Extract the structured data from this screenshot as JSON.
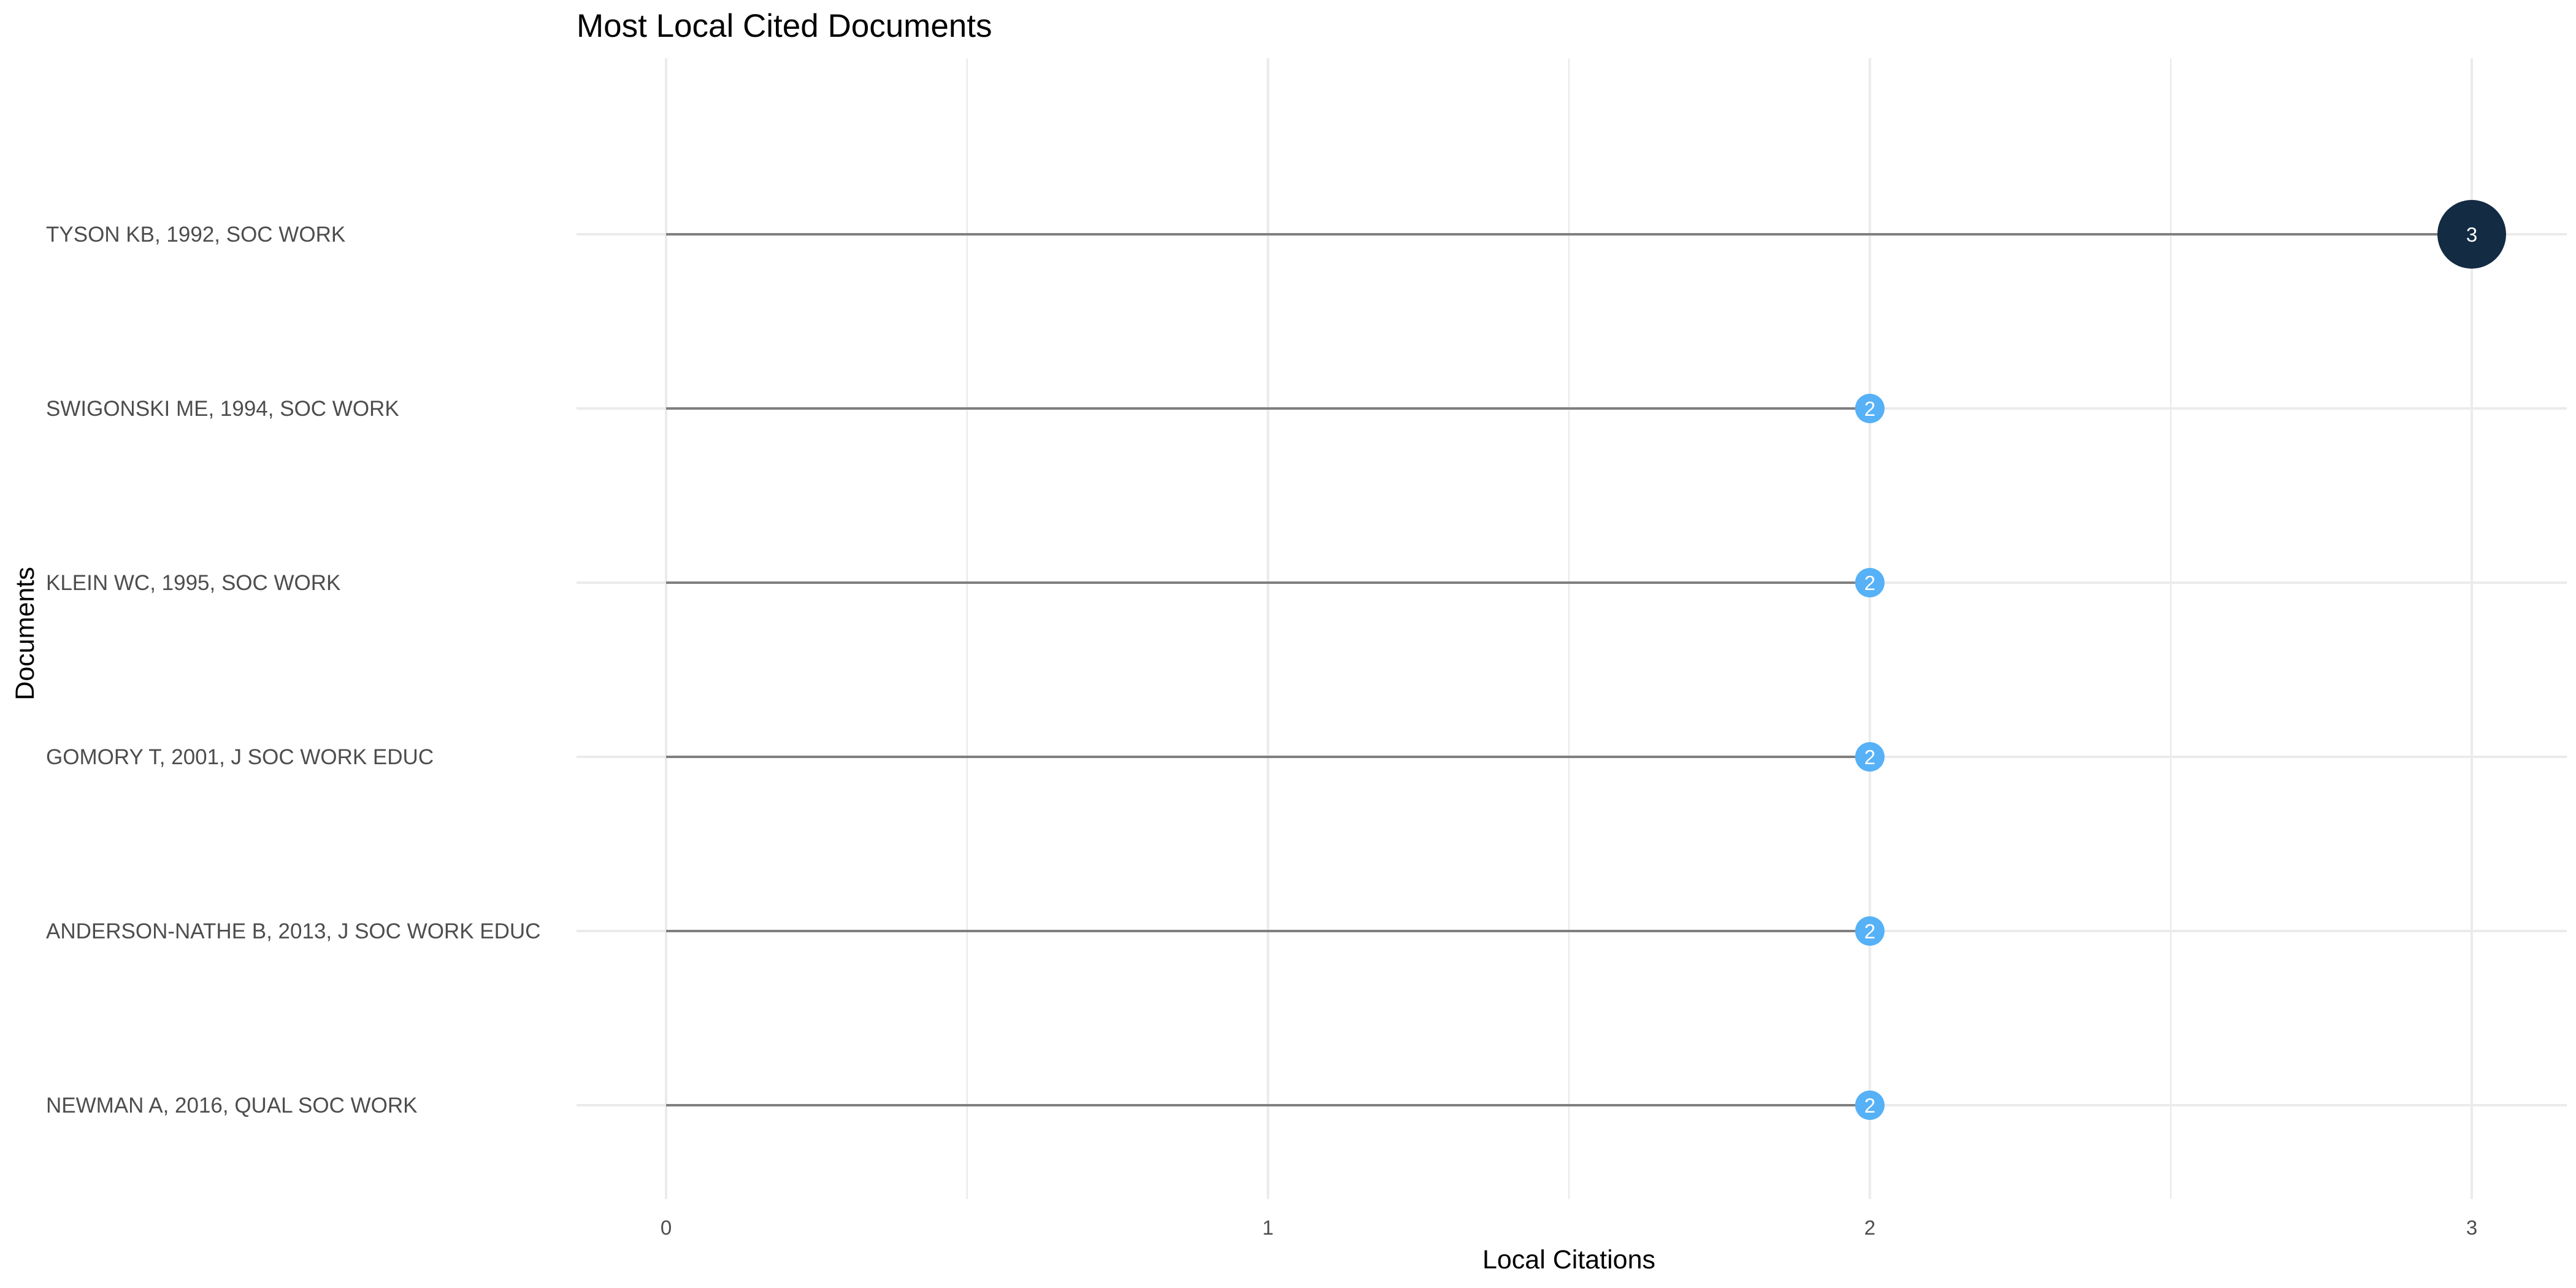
{
  "chart_data": {
    "type": "lollipop",
    "title": "Most Local Cited Documents",
    "xlabel": "Local Citations",
    "ylabel": "Documents",
    "xlim": [
      0,
      3
    ],
    "x_ticks": [
      0,
      1,
      2,
      3
    ],
    "grid": true,
    "legend": "none",
    "categories": [
      "TYSON KB, 1992, SOC WORK",
      "SWIGONSKI ME, 1994, SOC WORK",
      "KLEIN WC, 1995, SOC WORK",
      "GOMORY T, 2001, J SOC WORK EDUC",
      "ANDERSON-NATHE B, 2013, J SOC WORK EDUC",
      "NEWMAN A, 2016, QUAL SOC WORK"
    ],
    "values": [
      3,
      2,
      2,
      2,
      2,
      2
    ],
    "data_labels": [
      "3",
      "2",
      "2",
      "2",
      "2",
      "2"
    ],
    "colors": {
      "high": "#132b43",
      "low": "#56b1f7",
      "segment": "#7f7f7f",
      "grid": "#ebebeb",
      "label": "#ffffff"
    }
  }
}
